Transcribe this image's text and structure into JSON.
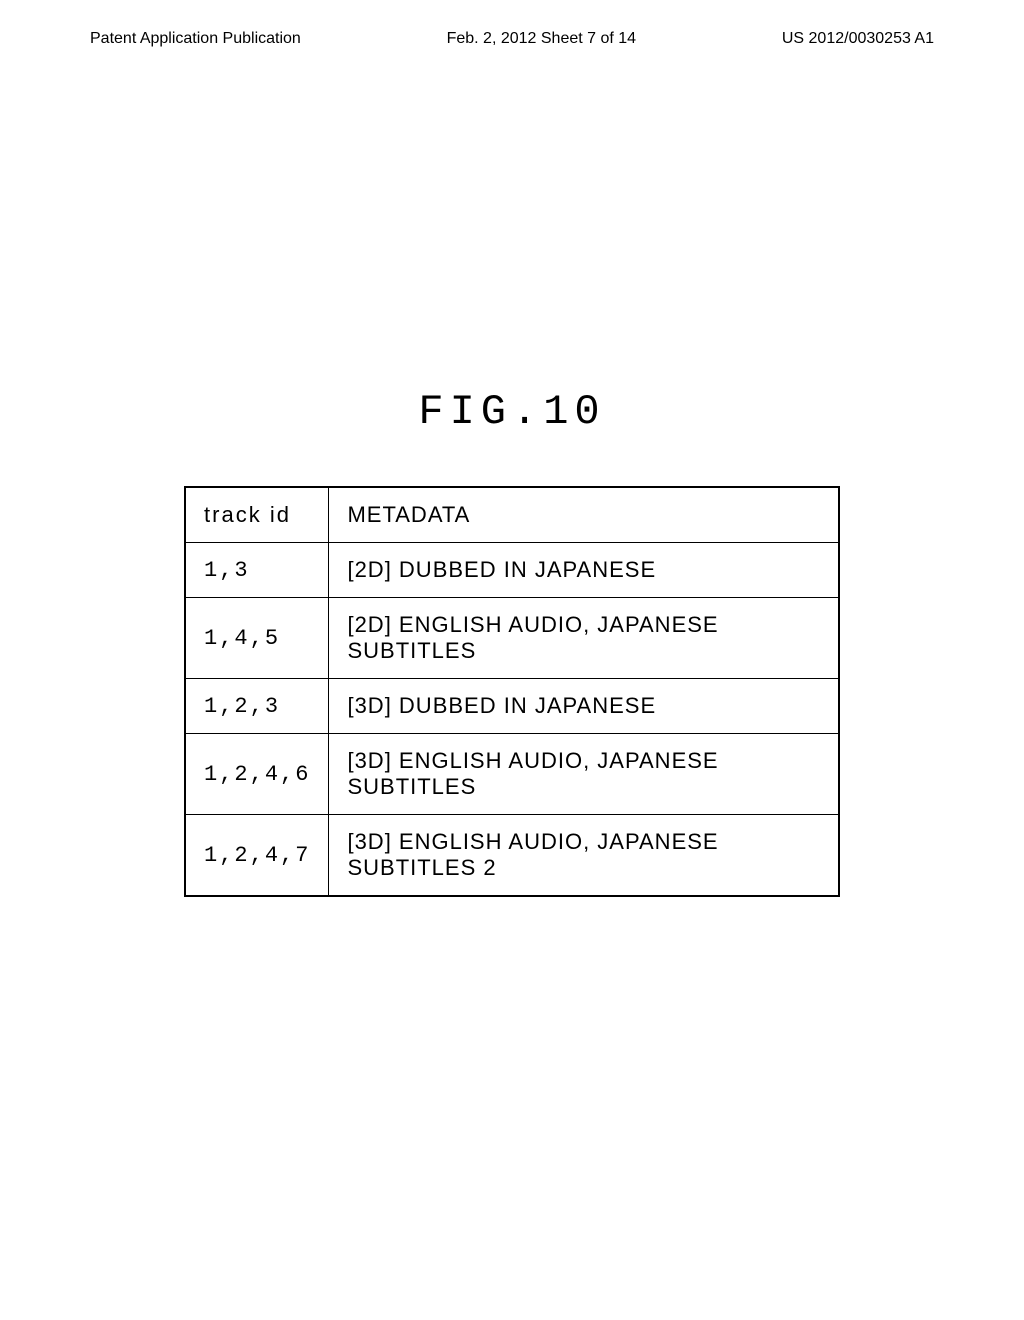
{
  "header": {
    "left": "Patent Application Publication",
    "center": "Feb. 2, 2012  Sheet 7 of 14",
    "right": "US 2012/0030253 A1"
  },
  "figure": {
    "title": "FIG.10"
  },
  "table": {
    "type": "table",
    "columns": [
      "track id",
      "METADATA"
    ],
    "rows": [
      [
        "1,3",
        "[2D] DUBBED IN JAPANESE"
      ],
      [
        "1,4,5",
        "[2D] ENGLISH AUDIO, JAPANESE SUBTITLES"
      ],
      [
        "1,2,3",
        "[3D] DUBBED IN JAPANESE"
      ],
      [
        "1,2,4,6",
        "[3D] ENGLISH AUDIO, JAPANESE SUBTITLES"
      ],
      [
        "1,2,4,7",
        "[3D] ENGLISH AUDIO, JAPANESE SUBTITLES 2"
      ]
    ],
    "border_color": "#000000",
    "background_color": "#ffffff",
    "header_fontsize": 22,
    "cell_fontsize": 22,
    "col_trackid_width": 140,
    "col_metadata_width": 510
  },
  "colors": {
    "text": "#000000",
    "background": "#ffffff",
    "border": "#000000"
  }
}
